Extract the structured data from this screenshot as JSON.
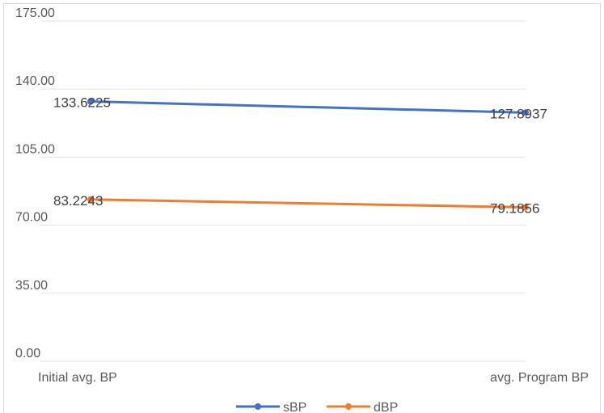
{
  "chart_data": {
    "type": "line",
    "categories": [
      "Initial avg. BP",
      "avg. Program BP"
    ],
    "series": [
      {
        "name": "sBP",
        "values": [
          133.6225,
          127.8937
        ],
        "labels": [
          "133.6225",
          "127.8937"
        ],
        "color": "#4472C4"
      },
      {
        "name": "dBP",
        "values": [
          83.2243,
          79.1856
        ],
        "labels": [
          "83.2243",
          "79.1856"
        ],
        "color": "#ED7D31"
      }
    ],
    "yticks": [
      "0.00",
      "35.00",
      "70.00",
      "105.00",
      "140.00",
      "175.00"
    ],
    "ylim": [
      0,
      175
    ],
    "grid": true,
    "legend_position": "bottom",
    "title": "",
    "xlabel": "",
    "ylabel": ""
  }
}
